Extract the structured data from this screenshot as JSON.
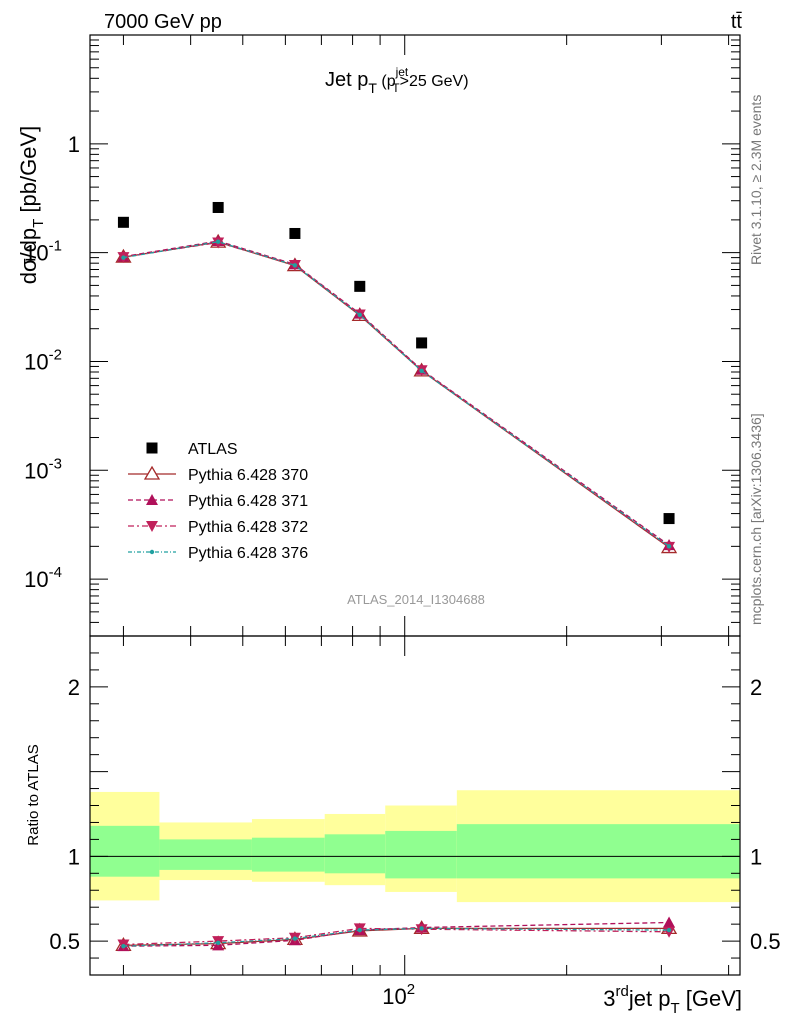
{
  "header": {
    "left": "7000 GeV pp",
    "right": "tt̄"
  },
  "side": {
    "top": "Rivet 3.1.10, ≥ 2.3M events",
    "bottom": "mcplots.cern.ch [arXiv:1306.3436]"
  },
  "colors": {
    "data": "#000000",
    "p370": "#a52a2a",
    "p371": "#b0105a",
    "p372": "#c0205a",
    "p376": "#20a0a0",
    "band_inner": "#90ff90",
    "band_outer": "#ffff9c"
  },
  "chart_data": [
    {
      "type": "scatter",
      "title": "Jet p_T (p_T^jet>25 GeV)",
      "analysis_tag": "ATLAS_2014_I1304688",
      "ylabel": "dσ/dp_T [pb/GeV]",
      "yscale": "log",
      "xscale": "log",
      "xlim": [
        26,
        420
      ],
      "ylim": [
        3e-05,
        10
      ],
      "y_ticks": [
        {
          "v": 0.0001,
          "label": "10",
          "exp": "-4"
        },
        {
          "v": 0.001,
          "label": "10",
          "exp": "-3"
        },
        {
          "v": 0.01,
          "label": "10",
          "exp": "-2"
        },
        {
          "v": 0.1,
          "label": "10",
          "exp": "-1"
        },
        {
          "v": 1,
          "label": "1",
          "exp": ""
        }
      ],
      "x": [
        30,
        45,
        62.5,
        82.5,
        107.5,
        310
      ],
      "series": [
        {
          "name": "ATLAS",
          "marker": "square",
          "values": [
            0.19,
            0.26,
            0.15,
            0.049,
            0.0148,
            0.00036
          ]
        },
        {
          "name": "Pythia 6.428 370",
          "marker": "open-triangle",
          "line": "solid",
          "values": [
            0.091,
            0.125,
            0.076,
            0.0265,
            0.0082,
            0.000195
          ]
        },
        {
          "name": "Pythia 6.428 371",
          "marker": "triangle",
          "line": "dashed",
          "values": [
            0.092,
            0.128,
            0.078,
            0.0275,
            0.0084,
            0.000205
          ]
        },
        {
          "name": "Pythia 6.428 372",
          "marker": "triangle-down",
          "line": "dashdot",
          "values": [
            0.091,
            0.124,
            0.077,
            0.027,
            0.0083,
            0.000198
          ]
        },
        {
          "name": "Pythia 6.428 376",
          "marker": "dot",
          "line": "dashdotted",
          "values": [
            0.09,
            0.126,
            0.0765,
            0.0268,
            0.0082,
            0.0002
          ]
        }
      ]
    },
    {
      "type": "line",
      "ylabel": "Ratio to ATLAS",
      "xlabel": "3^rd jet p_T [GeV]",
      "xscale": "log",
      "xlim": [
        26,
        420
      ],
      "ylim": [
        0.3,
        2.3
      ],
      "y_ticks": [
        {
          "v": 0.5,
          "label": "0.5"
        },
        {
          "v": 1,
          "label": "1"
        },
        {
          "v": 2,
          "label": "2"
        }
      ],
      "x_tick_label": {
        "v": 100,
        "label": "10",
        "exp": "2"
      },
      "bands": [
        {
          "x0": 26,
          "x1": 35,
          "inner": [
            0.88,
            1.18
          ],
          "outer": [
            0.74,
            1.38
          ]
        },
        {
          "x0": 35,
          "x1": 52,
          "inner": [
            0.92,
            1.1
          ],
          "outer": [
            0.86,
            1.2
          ]
        },
        {
          "x0": 52,
          "x1": 71,
          "inner": [
            0.91,
            1.11
          ],
          "outer": [
            0.85,
            1.22
          ]
        },
        {
          "x0": 71,
          "x1": 92,
          "inner": [
            0.9,
            1.13
          ],
          "outer": [
            0.83,
            1.25
          ]
        },
        {
          "x0": 92,
          "x1": 125,
          "inner": [
            0.87,
            1.15
          ],
          "outer": [
            0.79,
            1.3
          ]
        },
        {
          "x0": 125,
          "x1": 420,
          "inner": [
            0.87,
            1.19
          ],
          "outer": [
            0.73,
            1.39
          ]
        }
      ],
      "x": [
        30,
        45,
        62.5,
        82.5,
        107.5,
        310
      ],
      "series": [
        {
          "name": "Pythia 6.428 370",
          "values": [
            0.475,
            0.485,
            0.51,
            0.56,
            0.575,
            0.575
          ]
        },
        {
          "name": "Pythia 6.428 371",
          "values": [
            0.47,
            0.475,
            0.505,
            0.565,
            0.58,
            0.61
          ]
        },
        {
          "name": "Pythia 6.428 372",
          "values": [
            0.48,
            0.5,
            0.52,
            0.575,
            0.57,
            0.555
          ]
        },
        {
          "name": "Pythia 6.428 376",
          "values": [
            0.47,
            0.49,
            0.515,
            0.565,
            0.575,
            0.565
          ]
        }
      ]
    }
  ]
}
